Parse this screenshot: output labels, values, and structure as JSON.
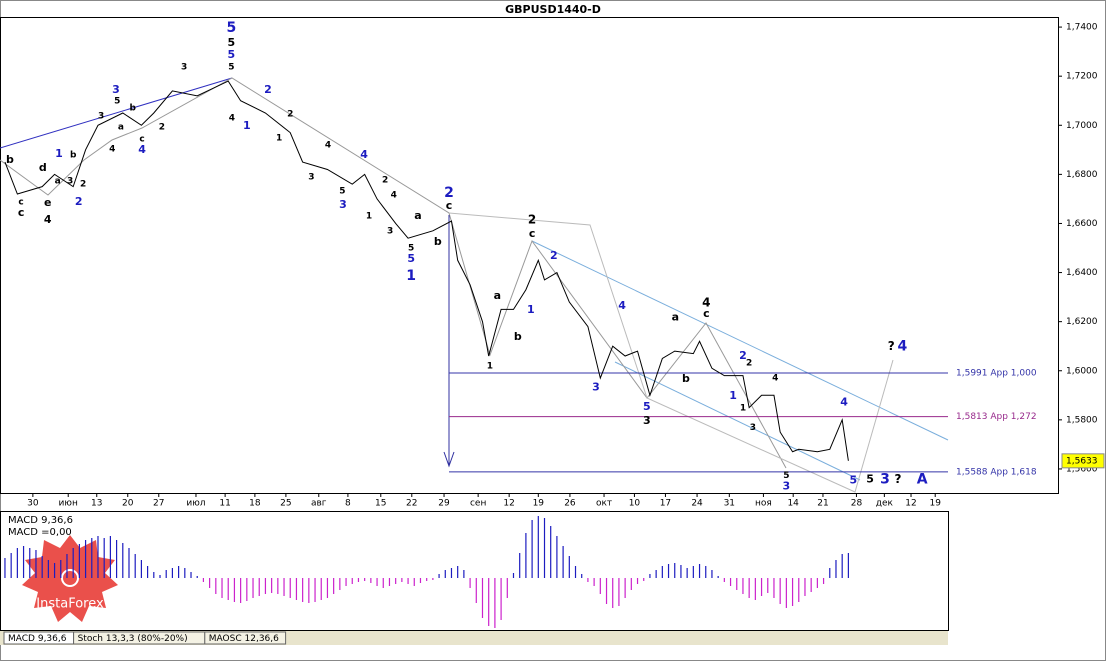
{
  "chart_data": {
    "type": "line",
    "title": "GBPUSD1440-D",
    "color": "#000000",
    "xlim": [
      -0.8,
      169.8
    ],
    "ylim": [
      1.5502,
      1.7437
    ],
    "yticks": [
      {
        "value": 1.74,
        "label": "1,7400"
      },
      {
        "value": 1.72,
        "label": "1,7200"
      },
      {
        "value": 1.7,
        "label": "1,7000"
      },
      {
        "value": 1.68,
        "label": "1,6800"
      },
      {
        "value": 1.66,
        "label": "1,6600"
      },
      {
        "value": 1.64,
        "label": "1,6400"
      },
      {
        "value": 1.62,
        "label": "1,6200"
      },
      {
        "value": 1.6,
        "label": "1,6000"
      },
      {
        "value": 1.58,
        "label": "1,5800"
      },
      {
        "value": 1.56,
        "label": "1,5600"
      }
    ],
    "xticks": [
      {
        "value": 4.5,
        "label": "30"
      },
      {
        "value": 10.2,
        "label": "июн"
      },
      {
        "value": 14.8,
        "label": "13"
      },
      {
        "value": 19.8,
        "label": "20"
      },
      {
        "value": 24.8,
        "label": "27"
      },
      {
        "value": 30.8,
        "label": "июл"
      },
      {
        "value": 35.5,
        "label": "11"
      },
      {
        "value": 40.3,
        "label": "18"
      },
      {
        "value": 45.3,
        "label": "25"
      },
      {
        "value": 50.6,
        "label": "авг"
      },
      {
        "value": 55.3,
        "label": "8"
      },
      {
        "value": 60.6,
        "label": "15"
      },
      {
        "value": 65.6,
        "label": "22"
      },
      {
        "value": 70.8,
        "label": "29"
      },
      {
        "value": 76.3,
        "label": "сен"
      },
      {
        "value": 81.3,
        "label": "12"
      },
      {
        "value": 86,
        "label": "19"
      },
      {
        "value": 91.1,
        "label": "26"
      },
      {
        "value": 96.6,
        "label": "окт"
      },
      {
        "value": 101.5,
        "label": "10"
      },
      {
        "value": 106.5,
        "label": "17"
      },
      {
        "value": 111.6,
        "label": "24"
      },
      {
        "value": 116.8,
        "label": "31"
      },
      {
        "value": 122.3,
        "label": "ноя"
      },
      {
        "value": 127.1,
        "label": "14"
      },
      {
        "value": 131.9,
        "label": "21"
      },
      {
        "value": 137.3,
        "label": "28"
      },
      {
        "value": 141.8,
        "label": "дек"
      },
      {
        "value": 146.1,
        "label": "12"
      },
      {
        "value": 150,
        "label": "19"
      }
    ],
    "x": [
      0,
      2,
      6,
      8,
      11,
      13,
      15,
      19,
      22,
      24,
      27,
      31,
      36,
      38,
      42,
      46,
      48,
      52,
      56,
      58,
      60,
      63,
      65,
      69,
      72,
      73,
      75,
      77,
      78,
      80,
      82,
      84,
      86,
      87,
      89,
      91,
      94,
      96,
      98,
      100,
      102,
      104,
      106,
      108,
      111,
      112,
      114,
      116,
      119,
      120,
      122,
      124,
      125,
      127,
      128,
      131,
      133,
      135,
      136
    ],
    "values": [
      1.685,
      1.672,
      1.675,
      1.68,
      1.675,
      1.69,
      1.7,
      1.705,
      1.7,
      1.705,
      1.714,
      1.712,
      1.718,
      1.71,
      1.705,
      1.697,
      1.685,
      1.682,
      1.676,
      1.68,
      1.67,
      1.66,
      1.654,
      1.657,
      1.661,
      1.645,
      1.635,
      1.62,
      1.606,
      1.625,
      1.625,
      1.633,
      1.645,
      1.637,
      1.64,
      1.628,
      1.618,
      1.597,
      1.61,
      1.606,
      1.608,
      1.59,
      1.605,
      1.608,
      1.607,
      1.612,
      1.601,
      1.598,
      1.598,
      1.585,
      1.59,
      1.59,
      1.575,
      1.567,
      1.568,
      1.567,
      1.568,
      1.58,
      1.5633
    ],
    "current_price": {
      "value": 1.5633,
      "label": "1,5633"
    },
    "levels": [
      {
        "value": 1.5991,
        "label": "1,5991 App 1,000",
        "color": "#3434a8"
      },
      {
        "value": 1.5813,
        "label": "1,5813 App 1,272",
        "color": "#982a8c"
      },
      {
        "value": 1.5588,
        "label": "1,5588 App 1,618",
        "color": "#3434a8"
      }
    ],
    "level_start": 71.6,
    "waves": [
      [
        "5",
        36.5,
        1.7396,
        "#1c1cc0",
        14
      ],
      [
        "5",
        36.5,
        1.7335,
        "#000000",
        11
      ],
      [
        "5",
        36.5,
        1.7286,
        "#1c1cc0",
        11
      ],
      [
        "5",
        36.5,
        1.7237,
        "#000000",
        9
      ],
      [
        "3",
        28.9,
        1.7237,
        "#000000",
        9
      ],
      [
        "4",
        36.6,
        1.703,
        "#000000",
        9
      ],
      [
        "2",
        42.4,
        1.7144,
        "#1c1cc0",
        11
      ],
      [
        "1",
        39.0,
        1.6997,
        "#1c1cc0",
        11
      ],
      [
        "2",
        46.0,
        1.7046,
        "#000000",
        9
      ],
      [
        "1",
        44.2,
        1.6948,
        "#000000",
        9
      ],
      [
        "3",
        49.4,
        1.679,
        "#000000",
        9
      ],
      [
        "4",
        52.1,
        1.692,
        "#000000",
        9
      ],
      [
        "5",
        54.4,
        1.6733,
        "#000000",
        9
      ],
      [
        "3",
        54.5,
        1.6676,
        "#1c1cc0",
        11
      ],
      [
        "4",
        57.9,
        1.6879,
        "#1c1cc0",
        11
      ],
      [
        "2",
        61.3,
        1.6777,
        "#000000",
        9
      ],
      [
        "4",
        62.7,
        1.6716,
        "#000000",
        9
      ],
      [
        "1",
        58.7,
        1.6631,
        "#000000",
        9
      ],
      [
        "3",
        62.1,
        1.657,
        "#000000",
        9
      ],
      [
        "5",
        65.5,
        1.65,
        "#000000",
        9
      ],
      [
        "5",
        65.5,
        1.6456,
        "#1c1cc0",
        11
      ],
      [
        "1",
        65.5,
        1.6387,
        "#1c1cc0",
        14
      ],
      [
        "2",
        71.6,
        1.6724,
        "#1c1cc0",
        14
      ],
      [
        "c",
        71.6,
        1.6671,
        "#000000",
        11
      ],
      [
        "b",
        69.8,
        1.6525,
        "#000000",
        11
      ],
      [
        "a",
        66.6,
        1.6631,
        "#000000",
        11
      ],
      [
        "b",
        0.8,
        1.6859,
        "#000000",
        11
      ],
      [
        "c",
        2.6,
        1.6688,
        "#000000",
        9
      ],
      [
        "c",
        2.6,
        1.6643,
        "#000000",
        11
      ],
      [
        "d",
        6.1,
        1.6826,
        "#000000",
        11
      ],
      [
        "e",
        6.9,
        1.6684,
        "#000000",
        11
      ],
      [
        "4",
        6.9,
        1.6614,
        "#000000",
        11
      ],
      [
        "a",
        8.5,
        1.6773,
        "#000000",
        9
      ],
      [
        "1",
        8.7,
        1.6883,
        "#1c1cc0",
        11
      ],
      [
        "b",
        11.0,
        1.6879,
        "#000000",
        9
      ],
      [
        "3",
        10.5,
        1.6773,
        "#000000",
        9
      ],
      [
        "2",
        11.9,
        1.6688,
        "#1c1cc0",
        11
      ],
      [
        "2",
        12.6,
        1.6761,
        "#000000",
        9
      ],
      [
        "3",
        15.5,
        1.7038,
        "#000000",
        9
      ],
      [
        "3",
        17.9,
        1.7144,
        "#1c1cc0",
        11
      ],
      [
        "5",
        18.1,
        1.7099,
        "#000000",
        9
      ],
      [
        "a",
        18.7,
        1.6993,
        "#000000",
        9
      ],
      [
        "4",
        17.3,
        1.6903,
        "#000000",
        9
      ],
      [
        "b",
        20.6,
        1.707,
        "#000000",
        9
      ],
      [
        "c",
        22.1,
        1.6944,
        "#000000",
        9
      ],
      [
        "4",
        22.1,
        1.6899,
        "#1c1cc0",
        11
      ],
      [
        "2",
        25.3,
        1.6993,
        "#000000",
        9
      ],
      [
        "2",
        85.0,
        1.6614,
        "#000000",
        12
      ],
      [
        "c",
        85.0,
        1.6557,
        "#000000",
        11
      ],
      [
        "a",
        79.4,
        1.6305,
        "#000000",
        11
      ],
      [
        "b",
        82.7,
        1.6138,
        "#000000",
        11
      ],
      [
        "1",
        78.2,
        1.602,
        "#000000",
        9
      ],
      [
        "1",
        84.8,
        1.6248,
        "#1c1cc0",
        11
      ],
      [
        "2",
        88.5,
        1.6468,
        "#1c1cc0",
        11
      ],
      [
        "4",
        99.5,
        1.6264,
        "#1c1cc0",
        11
      ],
      [
        "3",
        95.3,
        1.5931,
        "#1c1cc0",
        11
      ],
      [
        "5",
        103.5,
        1.5853,
        "#1c1cc0",
        11
      ],
      [
        "3",
        103.5,
        1.5796,
        "#000000",
        11
      ],
      [
        "a",
        108.1,
        1.6216,
        "#000000",
        11
      ],
      [
        "b",
        109.8,
        1.5967,
        "#000000",
        11
      ],
      [
        "4",
        113.1,
        1.6277,
        "#000000",
        12
      ],
      [
        "c",
        113.1,
        1.6232,
        "#000000",
        11
      ],
      [
        "2",
        119.0,
        1.6061,
        "#1c1cc0",
        11
      ],
      [
        "2",
        120.0,
        1.6032,
        "#000000",
        9
      ],
      [
        "1",
        117.4,
        1.5898,
        "#1c1cc0",
        11
      ],
      [
        "1",
        119.0,
        1.5849,
        "#000000",
        9
      ],
      [
        "4",
        124.2,
        1.5971,
        "#000000",
        9
      ],
      [
        "3",
        120.6,
        1.5768,
        "#000000",
        9
      ],
      [
        "5",
        126.0,
        1.5573,
        "#000000",
        9
      ],
      [
        "3",
        126.0,
        1.5528,
        "#1c1cc0",
        11
      ],
      [
        "4",
        135.3,
        1.587,
        "#1c1cc0",
        11
      ],
      [
        "5",
        136.8,
        1.5552,
        "#1c1cc0",
        11
      ],
      [
        "5",
        139.5,
        1.5556,
        "#000000",
        11
      ],
      [
        "3",
        141.9,
        1.5556,
        "#1c1cc0",
        14
      ],
      [
        "?",
        144.0,
        1.5556,
        "#000000",
        12
      ],
      [
        "A",
        147.9,
        1.5556,
        "#1c1cc0",
        14
      ],
      [
        "?",
        142.9,
        1.6098,
        "#000000",
        12
      ],
      [
        "4",
        144.7,
        1.6098,
        "#1c1cc0",
        14
      ]
    ],
    "macd": {
      "title": "MACD 9,36,6",
      "readout": "MACD =0,00",
      "ylim": [
        -50,
        67
      ],
      "up_color": "#1c1cc0",
      "down_color": "#cc22cc",
      "values": [
        20,
        25,
        30,
        32,
        30,
        28,
        22,
        18,
        15,
        18,
        24,
        30,
        34,
        38,
        40,
        42,
        40,
        42,
        38,
        35,
        30,
        24,
        18,
        12,
        6,
        3,
        8,
        10,
        12,
        10,
        6,
        2,
        -4,
        -10,
        -16,
        -20,
        -22,
        -24,
        -25,
        -23,
        -20,
        -18,
        -16,
        -15,
        -16,
        -18,
        -20,
        -22,
        -24,
        -25,
        -24,
        -22,
        -20,
        -16,
        -12,
        -8,
        -6,
        -4,
        -3,
        -5,
        -8,
        -10,
        -8,
        -6,
        -4,
        -6,
        -8,
        -5,
        -3,
        -2,
        4,
        8,
        10,
        12,
        8,
        -10,
        -25,
        -40,
        -48,
        -50,
        -42,
        -20,
        5,
        25,
        45,
        58,
        62,
        60,
        52,
        42,
        32,
        22,
        12,
        4,
        -4,
        -8,
        -16,
        -26,
        -30,
        -28,
        -20,
        -12,
        -6,
        -3,
        4,
        8,
        12,
        14,
        15,
        13,
        10,
        12,
        14,
        12,
        8,
        2,
        -4,
        -8,
        -12,
        -16,
        -20,
        -22,
        -18,
        -15,
        -20,
        -26,
        -30,
        -28,
        -24,
        -18,
        -14,
        -10,
        -6,
        10,
        18,
        24,
        25
      ]
    },
    "indicator_tabs": [
      "MACD 9,36,6",
      "Stoch 13,3,3 (80%-20%)",
      "MAOSC 12,36,6"
    ],
    "logo": "InstaForex"
  }
}
